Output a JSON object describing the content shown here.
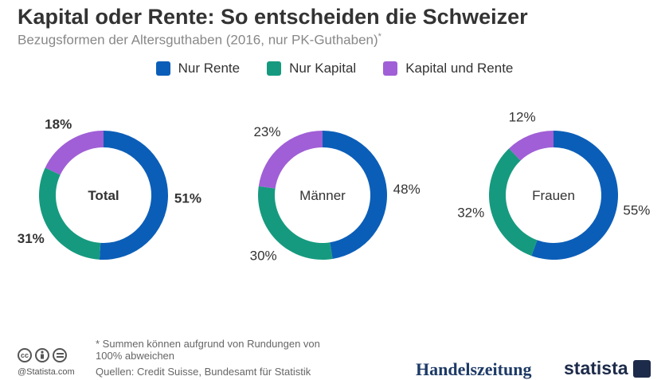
{
  "header": {
    "title": "Kapital oder Rente: So entscheiden die Schweizer",
    "subtitle": "Bezugsformen der Altersguthaben (2016, nur PK-Guthaben)",
    "subtitle_mark": "*"
  },
  "colors": {
    "nur_rente": "#0b5eb8",
    "nur_kapital": "#169a7f",
    "kapital_und_rente": "#a05fd6"
  },
  "chart_data": {
    "type": "pie",
    "variant": "donut",
    "series_names": [
      "Nur Rente",
      "Nur Kapital",
      "Kapital und Rente"
    ],
    "legend_position": "top-center",
    "charts": [
      {
        "label": "Total",
        "values": [
          51,
          31,
          18
        ],
        "value_labels": [
          "51%",
          "31%",
          "18%"
        ]
      },
      {
        "label": "Männer",
        "values": [
          48,
          30,
          23
        ],
        "value_labels": [
          "48%",
          "30%",
          "23%"
        ]
      },
      {
        "label": "Frauen",
        "values": [
          55,
          32,
          12
        ],
        "value_labels": [
          "55%",
          "32%",
          "12%"
        ]
      }
    ]
  },
  "footer": {
    "footnote": "* Summen können aufgrund von Rundungen von 100% abweichen",
    "sources": "Quellen: Credit Suisse, Bundesamt für Statistik",
    "handle": "@Statista.com",
    "cc_icons": [
      "cc",
      "by",
      "nd"
    ],
    "brand_handelszeitung": "Handelszeitung",
    "brand_statista": "statista"
  }
}
